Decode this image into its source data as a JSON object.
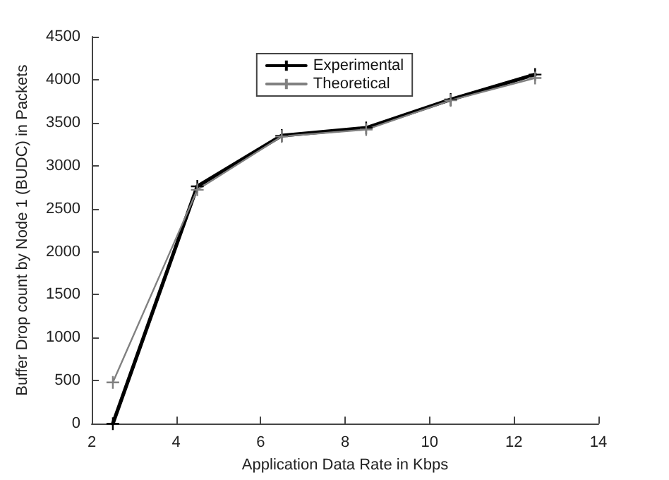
{
  "chart_data": {
    "type": "line",
    "xlabel": "Application Data Rate in Kbps",
    "ylabel": "Buffer Drop count by Node 1 (BUDC) in Packets",
    "x": [
      2.5,
      4.5,
      6.5,
      8.5,
      10.5,
      12.5
    ],
    "series": [
      {
        "name": "Experimental",
        "color": "#000000",
        "values": [
          0,
          2760,
          3350,
          3440,
          3770,
          4060
        ]
      },
      {
        "name": "Theoretical",
        "color": "#808080",
        "values": [
          480,
          2720,
          3340,
          3420,
          3760,
          4020
        ]
      }
    ],
    "xlim": [
      2,
      14
    ],
    "xticks": [
      2,
      4,
      6,
      8,
      10,
      12,
      14
    ],
    "ylim": [
      0,
      4500
    ],
    "yticks": [
      0,
      500,
      1000,
      1500,
      2000,
      2500,
      3000,
      3500,
      4000,
      4500
    ],
    "grid": false,
    "legend": "top",
    "marker": "cross",
    "line_style": "solid"
  }
}
